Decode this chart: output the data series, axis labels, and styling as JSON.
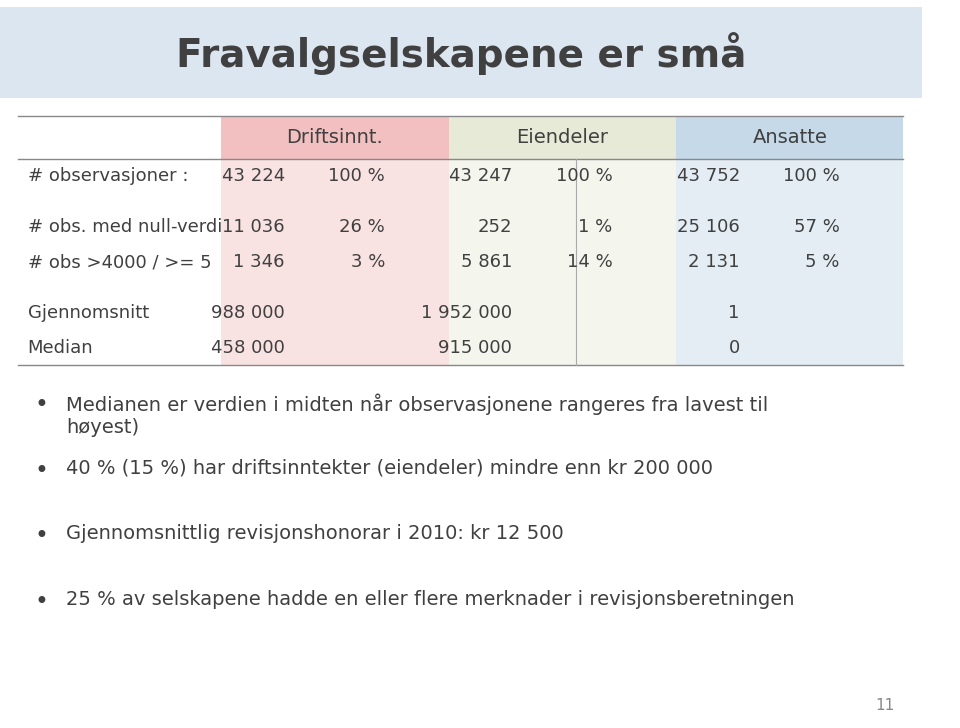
{
  "title": "Fravalgselskapene er små",
  "title_bg_color": "#dce6f1",
  "title_fontsize": 28,
  "col_headers": [
    "Driftsinnt.",
    "Eiendeler",
    "Ansatte"
  ],
  "col_header_bg": [
    "#f2c0c0",
    "#e8ead8",
    "#c5d9e8"
  ],
  "row_labels": [
    "# observasjoner :",
    "",
    "# obs. med null-verdi",
    "# obs >4000 / >= 5",
    "",
    "Gjennomsnitt",
    "Median"
  ],
  "table_data": [
    [
      "43 224",
      "100 %",
      "43 247",
      "100 %",
      "43 752",
      "100 %"
    ],
    [
      "",
      "",
      "",
      "",
      "",
      ""
    ],
    [
      "11 036",
      "26 %",
      "252",
      "1 %",
      "25 106",
      "57 %"
    ],
    [
      "1 346",
      "3 %",
      "5 861",
      "14 %",
      "2 131",
      "5 %"
    ],
    [
      "",
      "",
      "",
      "",
      "",
      ""
    ],
    [
      "988 000",
      "",
      "1 952 000",
      "",
      "1",
      ""
    ],
    [
      "458 000",
      "",
      "915 000",
      "",
      "0",
      ""
    ]
  ],
  "bullet_points": [
    "Medianen er verdien i midten når observasjonene rangeres fra lavest til\nhøyest)",
    "40 % (15 %) har driftsinntekter (eiendeler) mindre enn kr 200 000",
    "Gjennomsnittlig revisjonshonorar i 2010: kr 12 500",
    "25 % av selskapene hadde en eller flere merknader i revisjonsberetningen"
  ],
  "page_number": "11",
  "bg_color": "#ffffff",
  "text_color": "#404040",
  "font_size_table": 13,
  "font_size_bullets": 14
}
